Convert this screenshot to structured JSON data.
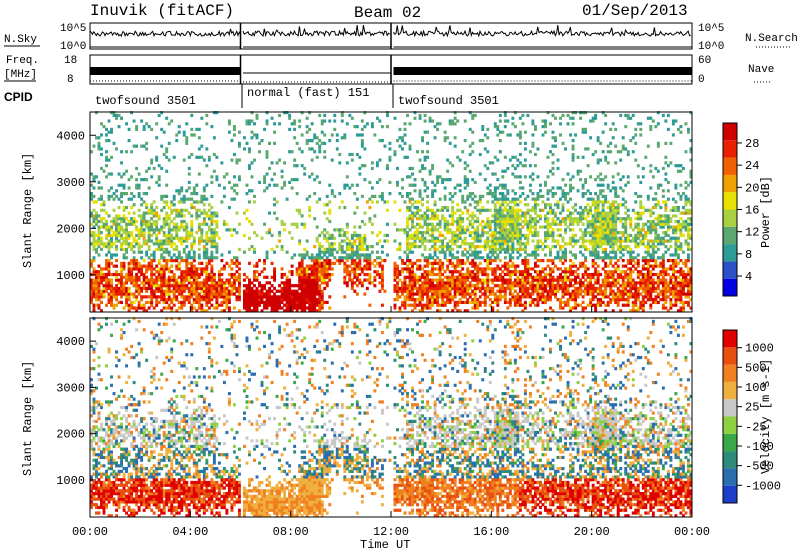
{
  "header": {
    "station": "Inuvik (fitACF)",
    "beam": "Beam 02",
    "date": "01/Sep/2013"
  },
  "sky_panel": {
    "label": "N.Sky",
    "tick_top": "10^5",
    "tick_bottom": "10^0",
    "right_label": "N.Search",
    "right_tick_top": "10^5",
    "right_tick_bottom": "10^0"
  },
  "freq_panel": {
    "label_line1": "Freq.",
    "label_line2": "[MHz]",
    "tick_top": "18",
    "tick_bottom": "8",
    "right_label": "Nave",
    "right_tick_top": "60",
    "right_tick_bottom": "0"
  },
  "cpid": {
    "label": "CPID",
    "segments": [
      {
        "text": "twofsound 3501",
        "start_h": 0,
        "end_h": 6
      },
      {
        "text": "normal (fast) 151",
        "start_h": 6,
        "end_h": 12
      },
      {
        "text": "twofsound 3501",
        "start_h": 12,
        "end_h": 24
      }
    ]
  },
  "chart_data": [
    {
      "type": "heatmap",
      "name": "power",
      "ylabel": "Slant Range [km]",
      "xlim": [
        0,
        24
      ],
      "ylim": [
        200,
        4500
      ],
      "yticks": [
        "1000",
        "2000",
        "3000",
        "4000"
      ],
      "colorbar": {
        "label": "Power [dB]",
        "ticks": [
          "28",
          "24",
          "20",
          "16",
          "12",
          "8",
          "4"
        ],
        "range": [
          0,
          30
        ],
        "colors": [
          "#0000e0",
          "#2c50c8",
          "#2e9c96",
          "#5aa870",
          "#a8d040",
          "#e8e000",
          "#f0a000",
          "#f06000",
          "#e82000",
          "#d00000"
        ]
      }
    },
    {
      "type": "heatmap",
      "name": "velocity",
      "ylabel": "Slant Range [km]",
      "xlim": [
        0,
        24
      ],
      "ylim": [
        200,
        4500
      ],
      "yticks": [
        "1000",
        "2000",
        "3000",
        "4000"
      ],
      "xticks": [
        "00:00",
        "04:00",
        "08:00",
        "12:00",
        "16:00",
        "20:00",
        "00:00"
      ],
      "xlabel": "Time UT",
      "colorbar": {
        "label": "Velocity [m s-1]",
        "ticks": [
          "1000",
          "500",
          "100",
          "25",
          "-25",
          "-100",
          "-500",
          "-1000"
        ],
        "colors": [
          "#1c3ec8",
          "#2a6eb0",
          "#2e8a7a",
          "#38a848",
          "#8ed040",
          "#c8c8c8",
          "#f0b040",
          "#f08020",
          "#e85010",
          "#e00000"
        ]
      }
    }
  ]
}
